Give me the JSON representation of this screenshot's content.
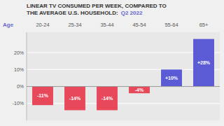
{
  "chart_data": {
    "type": "bar",
    "title": [
      "LINEAR TV CONSUMED PER WEEK, COMPARED TO",
      "THE AVERAGE U.S. HOUSEHOLD:"
    ],
    "subtitle": "Q2 2022",
    "x_label": "Age",
    "categories": [
      "20-24",
      "25-34",
      "35-44",
      "45-54",
      "55-64",
      "65+"
    ],
    "values": [
      -11,
      -14,
      -14,
      -4,
      10,
      28
    ],
    "value_labels": [
      "-11%",
      "-14%",
      "-14%",
      "-4%",
      "+10%",
      "+28%"
    ],
    "data_labels": true,
    "colors": [
      "#e8495a",
      "#e8495a",
      "#e8495a",
      "#e8495a",
      "#5b5bd6",
      "#5b5bd6"
    ],
    "ylim": [
      -20,
      32
    ],
    "yticks": [
      {
        "value": -10,
        "label": "-10%"
      },
      {
        "value": 0,
        "label": "0%"
      },
      {
        "value": 10,
        "label": "10%"
      },
      {
        "value": 20,
        "label": "20%"
      }
    ],
    "grid": true
  }
}
